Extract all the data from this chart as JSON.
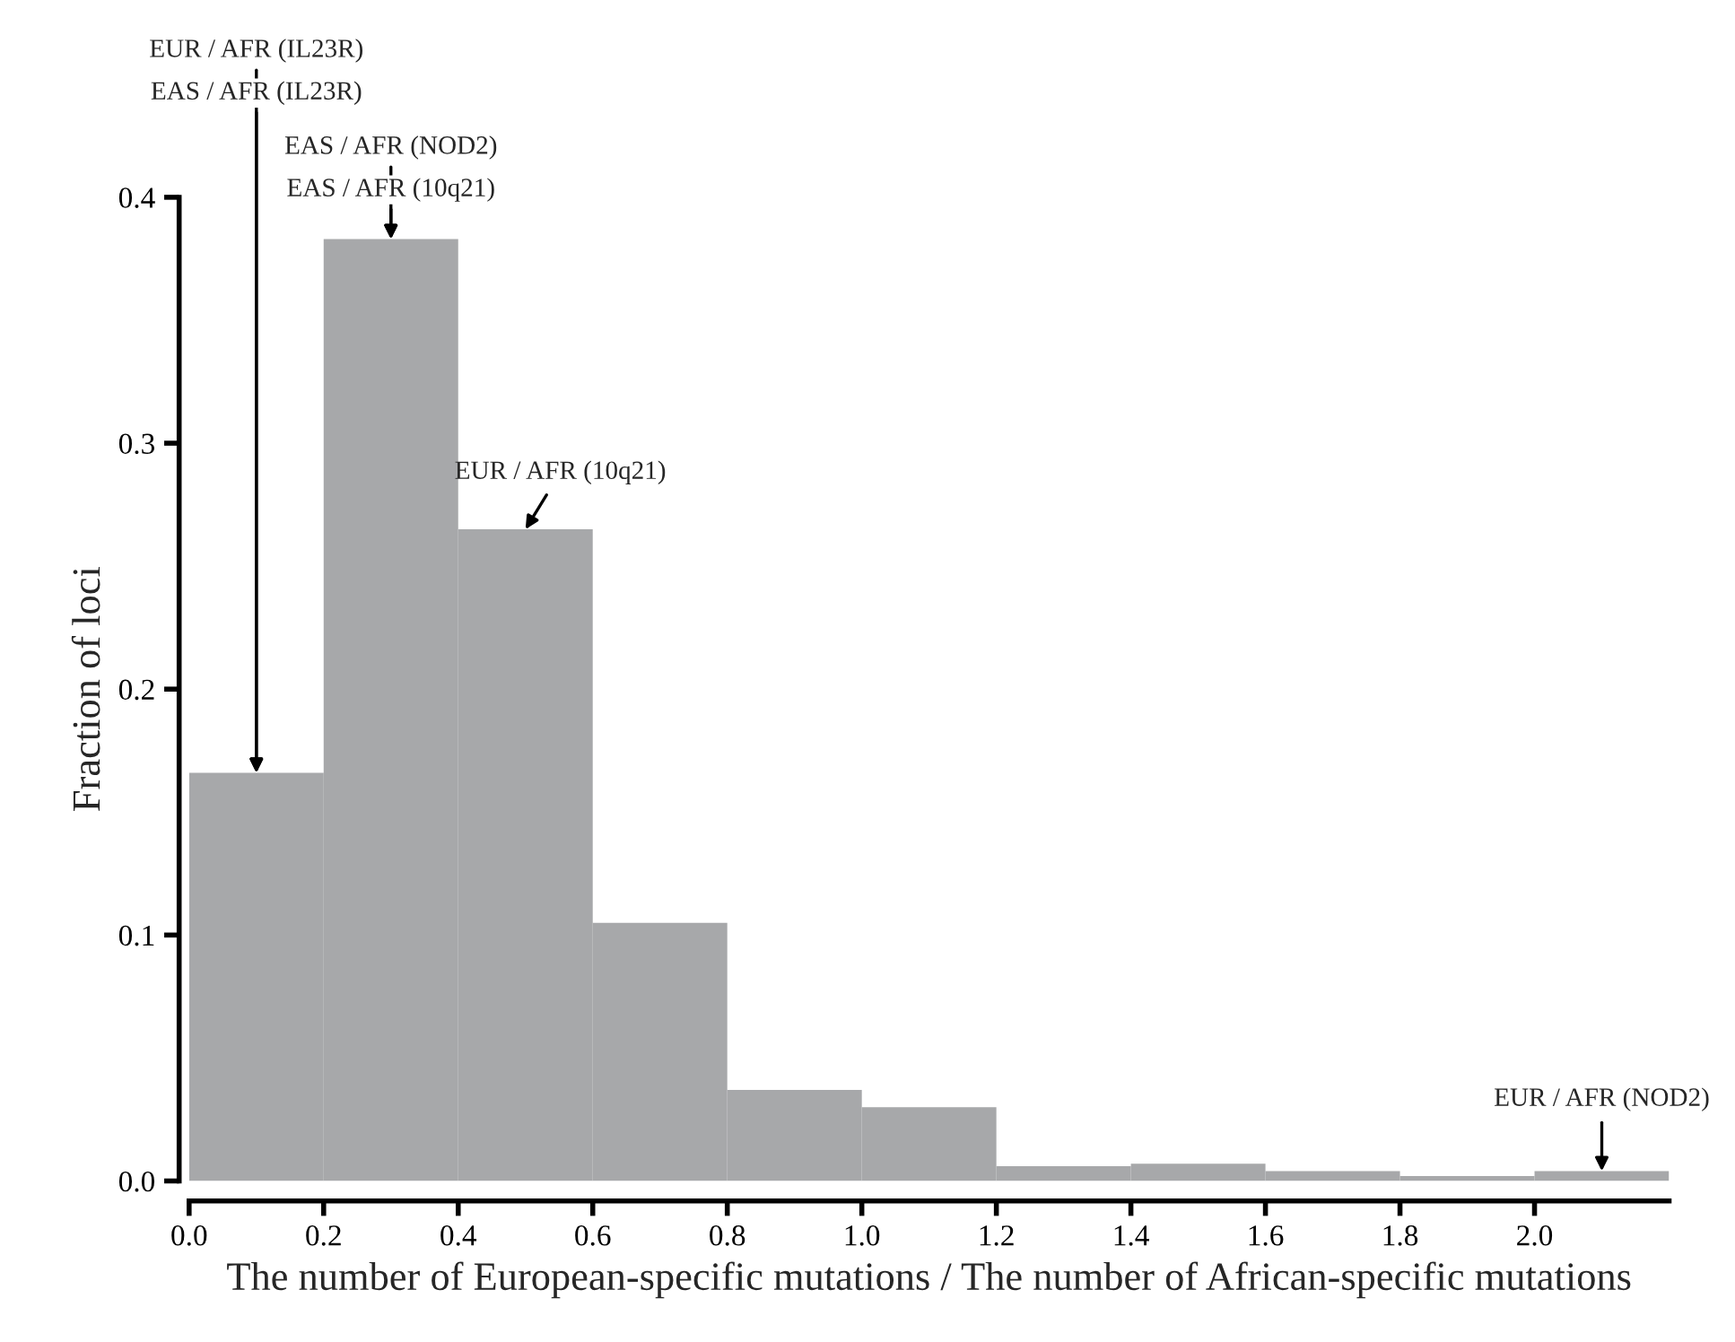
{
  "chart_data": {
    "type": "histogram",
    "xlabel": "The number of European-specific mutations / The number of African-specific mutations",
    "ylabel": "Fraction of loci",
    "bins": [
      0.0,
      0.2,
      0.4,
      0.6,
      0.8,
      1.0,
      1.2,
      1.4,
      1.6,
      1.8,
      2.0,
      2.2
    ],
    "values": [
      0.166,
      0.383,
      0.265,
      0.105,
      0.037,
      0.03,
      0.006,
      0.007,
      0.004,
      0.002,
      0.004
    ],
    "color": "#a7a8aa",
    "xlim": [
      0,
      2.2
    ],
    "ylim": [
      0,
      0.4
    ],
    "xticks": [
      {
        "value": 0,
        "label": "0.0"
      },
      0.2,
      0.4,
      0.6,
      0.8,
      {
        "value": 1,
        "label": "1.0"
      },
      1.2,
      1.4,
      1.6,
      1.8,
      {
        "value": 2,
        "label": "2.0"
      }
    ],
    "yticks": [
      {
        "value": 0,
        "label": "0.0"
      },
      0.1,
      0.2,
      0.3,
      0.4
    ],
    "grid": false,
    "legend": false,
    "annotations": [
      {
        "text": "EUR / AFR (IL23R)",
        "x": 0.1,
        "y": 0.166
      },
      {
        "text": "EAS / AFR (IL23R)",
        "x": 0.1,
        "y": 0.166
      },
      {
        "text": "EAS / AFR (NOD2)",
        "x": 0.3,
        "y": 0.383
      },
      {
        "text": "EAS / AFR (10q21)",
        "x": 0.3,
        "y": 0.383
      },
      {
        "text": "EUR / AFR (10q21)",
        "x": 0.5,
        "y": 0.265
      },
      {
        "text": "EUR / AFR (NOD2)",
        "x": 2.1,
        "y": 0.004
      }
    ]
  }
}
